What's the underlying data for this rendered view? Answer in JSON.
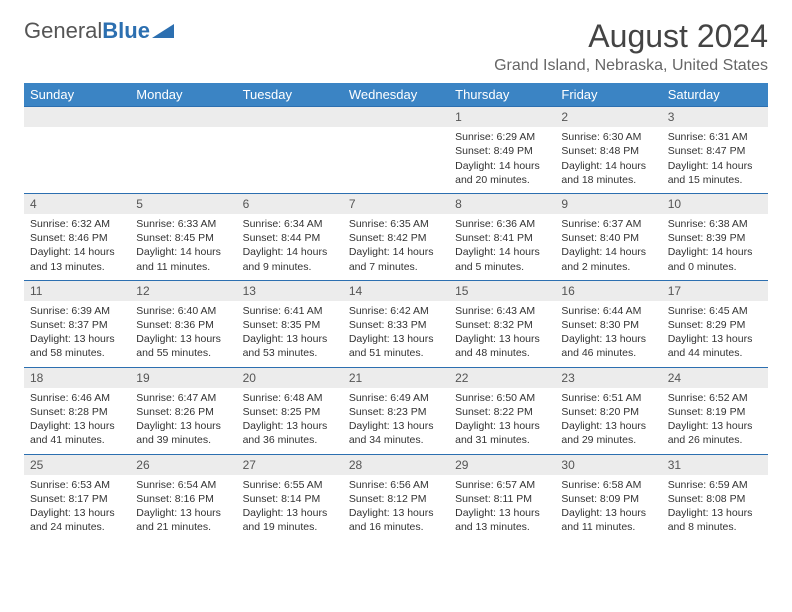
{
  "logo": {
    "word1": "General",
    "word2": "Blue"
  },
  "title": "August 2024",
  "location": "Grand Island, Nebraska, United States",
  "colors": {
    "header_bg": "#3b84c4",
    "header_text": "#ffffff",
    "daynum_bg": "#ececec",
    "rule": "#2c6fb0",
    "logo_accent": "#2c6fb0"
  },
  "day_labels": [
    "Sunday",
    "Monday",
    "Tuesday",
    "Wednesday",
    "Thursday",
    "Friday",
    "Saturday"
  ],
  "weeks": [
    [
      null,
      null,
      null,
      null,
      {
        "num": "1",
        "sunrise": "Sunrise: 6:29 AM",
        "sunset": "Sunset: 8:49 PM",
        "daylight": "Daylight: 14 hours and 20 minutes."
      },
      {
        "num": "2",
        "sunrise": "Sunrise: 6:30 AM",
        "sunset": "Sunset: 8:48 PM",
        "daylight": "Daylight: 14 hours and 18 minutes."
      },
      {
        "num": "3",
        "sunrise": "Sunrise: 6:31 AM",
        "sunset": "Sunset: 8:47 PM",
        "daylight": "Daylight: 14 hours and 15 minutes."
      }
    ],
    [
      {
        "num": "4",
        "sunrise": "Sunrise: 6:32 AM",
        "sunset": "Sunset: 8:46 PM",
        "daylight": "Daylight: 14 hours and 13 minutes."
      },
      {
        "num": "5",
        "sunrise": "Sunrise: 6:33 AM",
        "sunset": "Sunset: 8:45 PM",
        "daylight": "Daylight: 14 hours and 11 minutes."
      },
      {
        "num": "6",
        "sunrise": "Sunrise: 6:34 AM",
        "sunset": "Sunset: 8:44 PM",
        "daylight": "Daylight: 14 hours and 9 minutes."
      },
      {
        "num": "7",
        "sunrise": "Sunrise: 6:35 AM",
        "sunset": "Sunset: 8:42 PM",
        "daylight": "Daylight: 14 hours and 7 minutes."
      },
      {
        "num": "8",
        "sunrise": "Sunrise: 6:36 AM",
        "sunset": "Sunset: 8:41 PM",
        "daylight": "Daylight: 14 hours and 5 minutes."
      },
      {
        "num": "9",
        "sunrise": "Sunrise: 6:37 AM",
        "sunset": "Sunset: 8:40 PM",
        "daylight": "Daylight: 14 hours and 2 minutes."
      },
      {
        "num": "10",
        "sunrise": "Sunrise: 6:38 AM",
        "sunset": "Sunset: 8:39 PM",
        "daylight": "Daylight: 14 hours and 0 minutes."
      }
    ],
    [
      {
        "num": "11",
        "sunrise": "Sunrise: 6:39 AM",
        "sunset": "Sunset: 8:37 PM",
        "daylight": "Daylight: 13 hours and 58 minutes."
      },
      {
        "num": "12",
        "sunrise": "Sunrise: 6:40 AM",
        "sunset": "Sunset: 8:36 PM",
        "daylight": "Daylight: 13 hours and 55 minutes."
      },
      {
        "num": "13",
        "sunrise": "Sunrise: 6:41 AM",
        "sunset": "Sunset: 8:35 PM",
        "daylight": "Daylight: 13 hours and 53 minutes."
      },
      {
        "num": "14",
        "sunrise": "Sunrise: 6:42 AM",
        "sunset": "Sunset: 8:33 PM",
        "daylight": "Daylight: 13 hours and 51 minutes."
      },
      {
        "num": "15",
        "sunrise": "Sunrise: 6:43 AM",
        "sunset": "Sunset: 8:32 PM",
        "daylight": "Daylight: 13 hours and 48 minutes."
      },
      {
        "num": "16",
        "sunrise": "Sunrise: 6:44 AM",
        "sunset": "Sunset: 8:30 PM",
        "daylight": "Daylight: 13 hours and 46 minutes."
      },
      {
        "num": "17",
        "sunrise": "Sunrise: 6:45 AM",
        "sunset": "Sunset: 8:29 PM",
        "daylight": "Daylight: 13 hours and 44 minutes."
      }
    ],
    [
      {
        "num": "18",
        "sunrise": "Sunrise: 6:46 AM",
        "sunset": "Sunset: 8:28 PM",
        "daylight": "Daylight: 13 hours and 41 minutes."
      },
      {
        "num": "19",
        "sunrise": "Sunrise: 6:47 AM",
        "sunset": "Sunset: 8:26 PM",
        "daylight": "Daylight: 13 hours and 39 minutes."
      },
      {
        "num": "20",
        "sunrise": "Sunrise: 6:48 AM",
        "sunset": "Sunset: 8:25 PM",
        "daylight": "Daylight: 13 hours and 36 minutes."
      },
      {
        "num": "21",
        "sunrise": "Sunrise: 6:49 AM",
        "sunset": "Sunset: 8:23 PM",
        "daylight": "Daylight: 13 hours and 34 minutes."
      },
      {
        "num": "22",
        "sunrise": "Sunrise: 6:50 AM",
        "sunset": "Sunset: 8:22 PM",
        "daylight": "Daylight: 13 hours and 31 minutes."
      },
      {
        "num": "23",
        "sunrise": "Sunrise: 6:51 AM",
        "sunset": "Sunset: 8:20 PM",
        "daylight": "Daylight: 13 hours and 29 minutes."
      },
      {
        "num": "24",
        "sunrise": "Sunrise: 6:52 AM",
        "sunset": "Sunset: 8:19 PM",
        "daylight": "Daylight: 13 hours and 26 minutes."
      }
    ],
    [
      {
        "num": "25",
        "sunrise": "Sunrise: 6:53 AM",
        "sunset": "Sunset: 8:17 PM",
        "daylight": "Daylight: 13 hours and 24 minutes."
      },
      {
        "num": "26",
        "sunrise": "Sunrise: 6:54 AM",
        "sunset": "Sunset: 8:16 PM",
        "daylight": "Daylight: 13 hours and 21 minutes."
      },
      {
        "num": "27",
        "sunrise": "Sunrise: 6:55 AM",
        "sunset": "Sunset: 8:14 PM",
        "daylight": "Daylight: 13 hours and 19 minutes."
      },
      {
        "num": "28",
        "sunrise": "Sunrise: 6:56 AM",
        "sunset": "Sunset: 8:12 PM",
        "daylight": "Daylight: 13 hours and 16 minutes."
      },
      {
        "num": "29",
        "sunrise": "Sunrise: 6:57 AM",
        "sunset": "Sunset: 8:11 PM",
        "daylight": "Daylight: 13 hours and 13 minutes."
      },
      {
        "num": "30",
        "sunrise": "Sunrise: 6:58 AM",
        "sunset": "Sunset: 8:09 PM",
        "daylight": "Daylight: 13 hours and 11 minutes."
      },
      {
        "num": "31",
        "sunrise": "Sunrise: 6:59 AM",
        "sunset": "Sunset: 8:08 PM",
        "daylight": "Daylight: 13 hours and 8 minutes."
      }
    ]
  ]
}
